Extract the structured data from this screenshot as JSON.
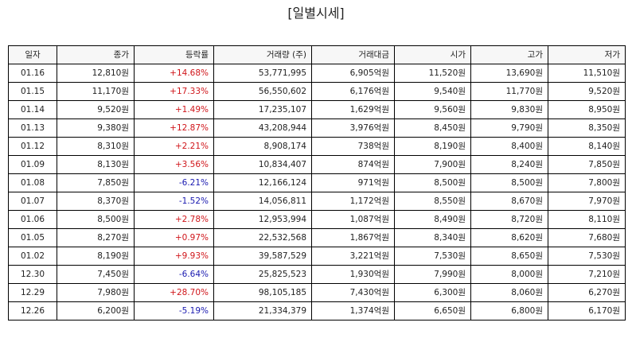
{
  "title": "[일별시세]",
  "columns": [
    "일자",
    "종가",
    "등락률",
    "거래량 (주)",
    "거래대금",
    "시가",
    "고가",
    "저가"
  ],
  "colors": {
    "up": "#d0151a",
    "down": "#1a1ab0"
  },
  "rows": [
    {
      "date": "01.16",
      "close": "12,810원",
      "change": "+14.68%",
      "dir": "up",
      "volume": "53,771,995",
      "amount": "6,905억원",
      "open": "11,520원",
      "high": "13,690원",
      "low": "11,510원"
    },
    {
      "date": "01.15",
      "close": "11,170원",
      "change": "+17.33%",
      "dir": "up",
      "volume": "56,550,602",
      "amount": "6,176억원",
      "open": "9,540원",
      "high": "11,770원",
      "low": "9,520원"
    },
    {
      "date": "01.14",
      "close": "9,520원",
      "change": "+1.49%",
      "dir": "up",
      "volume": "17,235,107",
      "amount": "1,629억원",
      "open": "9,560원",
      "high": "9,830원",
      "low": "8,950원"
    },
    {
      "date": "01.13",
      "close": "9,380원",
      "change": "+12.87%",
      "dir": "up",
      "volume": "43,208,944",
      "amount": "3,976억원",
      "open": "8,450원",
      "high": "9,790원",
      "low": "8,350원"
    },
    {
      "date": "01.12",
      "close": "8,310원",
      "change": "+2.21%",
      "dir": "up",
      "volume": "8,908,174",
      "amount": "738억원",
      "open": "8,190원",
      "high": "8,400원",
      "low": "8,140원"
    },
    {
      "date": "01.09",
      "close": "8,130원",
      "change": "+3.56%",
      "dir": "up",
      "volume": "10,834,407",
      "amount": "874억원",
      "open": "7,900원",
      "high": "8,240원",
      "low": "7,850원"
    },
    {
      "date": "01.08",
      "close": "7,850원",
      "change": "-6.21%",
      "dir": "down",
      "volume": "12,166,124",
      "amount": "971억원",
      "open": "8,500원",
      "high": "8,500원",
      "low": "7,800원"
    },
    {
      "date": "01.07",
      "close": "8,370원",
      "change": "-1.52%",
      "dir": "down",
      "volume": "14,056,811",
      "amount": "1,172억원",
      "open": "8,550원",
      "high": "8,670원",
      "low": "7,970원"
    },
    {
      "date": "01.06",
      "close": "8,500원",
      "change": "+2.78%",
      "dir": "up",
      "volume": "12,953,994",
      "amount": "1,087억원",
      "open": "8,490원",
      "high": "8,720원",
      "low": "8,110원"
    },
    {
      "date": "01.05",
      "close": "8,270원",
      "change": "+0.97%",
      "dir": "up",
      "volume": "22,532,568",
      "amount": "1,867억원",
      "open": "8,340원",
      "high": "8,620원",
      "low": "7,680원"
    },
    {
      "date": "01.02",
      "close": "8,190원",
      "change": "+9.93%",
      "dir": "up",
      "volume": "39,587,529",
      "amount": "3,221억원",
      "open": "7,530원",
      "high": "8,650원",
      "low": "7,530원"
    },
    {
      "date": "12.30",
      "close": "7,450원",
      "change": "-6.64%",
      "dir": "down",
      "volume": "25,825,523",
      "amount": "1,930억원",
      "open": "7,990원",
      "high": "8,000원",
      "low": "7,210원"
    },
    {
      "date": "12.29",
      "close": "7,980원",
      "change": "+28.70%",
      "dir": "up",
      "volume": "98,105,185",
      "amount": "7,430억원",
      "open": "6,300원",
      "high": "8,060원",
      "low": "6,270원"
    },
    {
      "date": "12.26",
      "close": "6,200원",
      "change": "-5.19%",
      "dir": "down",
      "volume": "21,334,379",
      "amount": "1,374억원",
      "open": "6,650원",
      "high": "6,800원",
      "low": "6,170원"
    }
  ]
}
